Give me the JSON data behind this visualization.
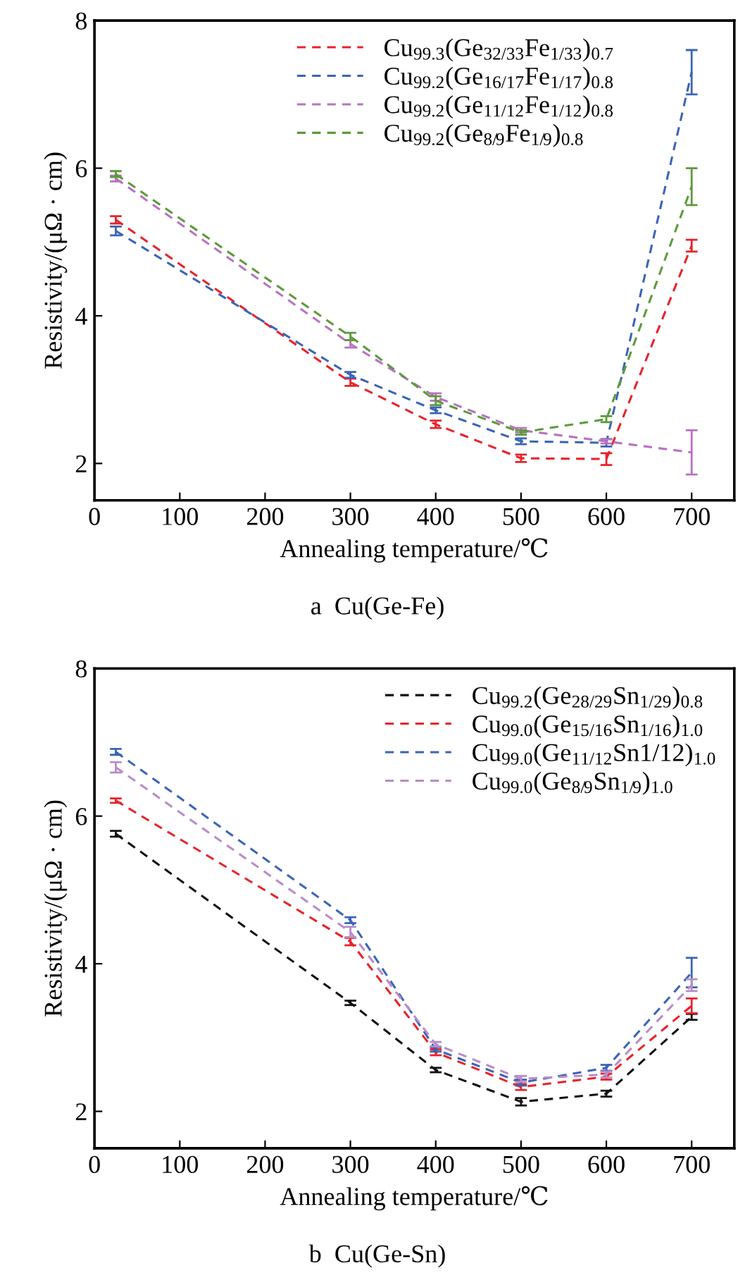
{
  "chart_data": [
    {
      "type": "line",
      "xlabel": "Annealing temperature/℃",
      "ylabel": "Resistivity/(μΩ · cm)",
      "annotations": [
        "a  Cu(Ge-Fe)"
      ],
      "x": [
        25,
        300,
        400,
        500,
        600,
        700
      ],
      "xlim": [
        0,
        750
      ],
      "ylim": [
        1.5,
        8
      ],
      "xticks": [
        0,
        100,
        200,
        300,
        400,
        500,
        600,
        700
      ],
      "yticks": [
        2,
        4,
        6,
        8
      ],
      "grid": false,
      "legend": "top right",
      "line_style": "dashed",
      "marker": "none",
      "series": [
        {
          "name": "Cu$_{99.3}$(Ge$_{32/33}$Fe$_{1/33}$)$_{0.7}$",
          "color": "#e8232a",
          "values": [
            5.3,
            3.1,
            2.53,
            2.07,
            2.06,
            4.95
          ],
          "errors": [
            0.05,
            0.05,
            0.05,
            0.05,
            0.08,
            0.08
          ]
        },
        {
          "name": "Cu$_{99.2}$(Ge$_{16/17}$Fe$_{1/17}$)$_{0.8}$",
          "color": "#3a64b8",
          "values": [
            5.15,
            3.2,
            2.72,
            2.3,
            2.28,
            7.3
          ],
          "errors": [
            0.06,
            0.04,
            0.04,
            0.04,
            0.05,
            0.3
          ]
        },
        {
          "name": "Cu$_{99.2}$(Ge$_{11/12}$Fe$_{1/12}$)$_{0.8}$",
          "color": "#b872c0",
          "values": [
            5.86,
            3.62,
            2.9,
            2.45,
            2.3,
            2.15
          ],
          "errors": [
            0.04,
            0.05,
            0.05,
            0.03,
            0.03,
            0.3
          ]
        },
        {
          "name": "Cu$_{99.2}$(Ge$_{8/9}$Fe$_{1/9}$)$_{0.8}$",
          "color": "#5c9a3a",
          "values": [
            5.92,
            3.72,
            2.85,
            2.42,
            2.6,
            5.75
          ],
          "errors": [
            0.04,
            0.05,
            0.06,
            0.03,
            0.04,
            0.25
          ]
        }
      ]
    },
    {
      "type": "line",
      "xlabel": "Annealing temperature/℃",
      "ylabel": "Resistivity/(μΩ · cm)",
      "annotations": [
        "b  Cu(Ge-Sn)"
      ],
      "x": [
        25,
        300,
        400,
        500,
        600,
        700
      ],
      "xlim": [
        0,
        750
      ],
      "ylim": [
        1.5,
        8
      ],
      "xticks": [
        0,
        100,
        200,
        300,
        400,
        500,
        600,
        700
      ],
      "yticks": [
        2,
        4,
        6,
        8
      ],
      "grid": false,
      "legend": "top right",
      "line_style": "dashed",
      "marker": "none",
      "series": [
        {
          "name": "Cu$_{99.2}$(Ge$_{28/29}$Sn$_{1/29}$)$_{0.8}$",
          "color": "#111111",
          "values": [
            5.76,
            3.47,
            2.56,
            2.13,
            2.24,
            3.28
          ],
          "errors": [
            0.04,
            0.03,
            0.03,
            0.05,
            0.04,
            0.04
          ]
        },
        {
          "name": "Cu$_{99.0}$(Ge$_{15/16}$Sn$_{1/16}$)$_{1.0}$",
          "color": "#e8232a",
          "values": [
            6.21,
            4.3,
            2.8,
            2.33,
            2.47,
            3.43
          ],
          "errors": [
            0.03,
            0.05,
            0.04,
            0.04,
            0.04,
            0.1
          ]
        },
        {
          "name": "Cu$_{99.0}$(Ge$_{11/12}$Sn1/12)$_{1.0}$",
          "color": "#3a64b8",
          "values": [
            6.87,
            4.59,
            2.84,
            2.39,
            2.59,
            3.88
          ],
          "errors": [
            0.04,
            0.04,
            0.03,
            0.04,
            0.04,
            0.2
          ]
        },
        {
          "name": "Cu$_{99.0}$(Ge$_{8/9}$Sn$_{1/9}$)$_{1.0}$",
          "color": "#b88cc8",
          "values": [
            6.66,
            4.43,
            2.91,
            2.44,
            2.5,
            3.71
          ],
          "errors": [
            0.07,
            0.07,
            0.03,
            0.04,
            0.04,
            0.08
          ]
        }
      ]
    }
  ]
}
